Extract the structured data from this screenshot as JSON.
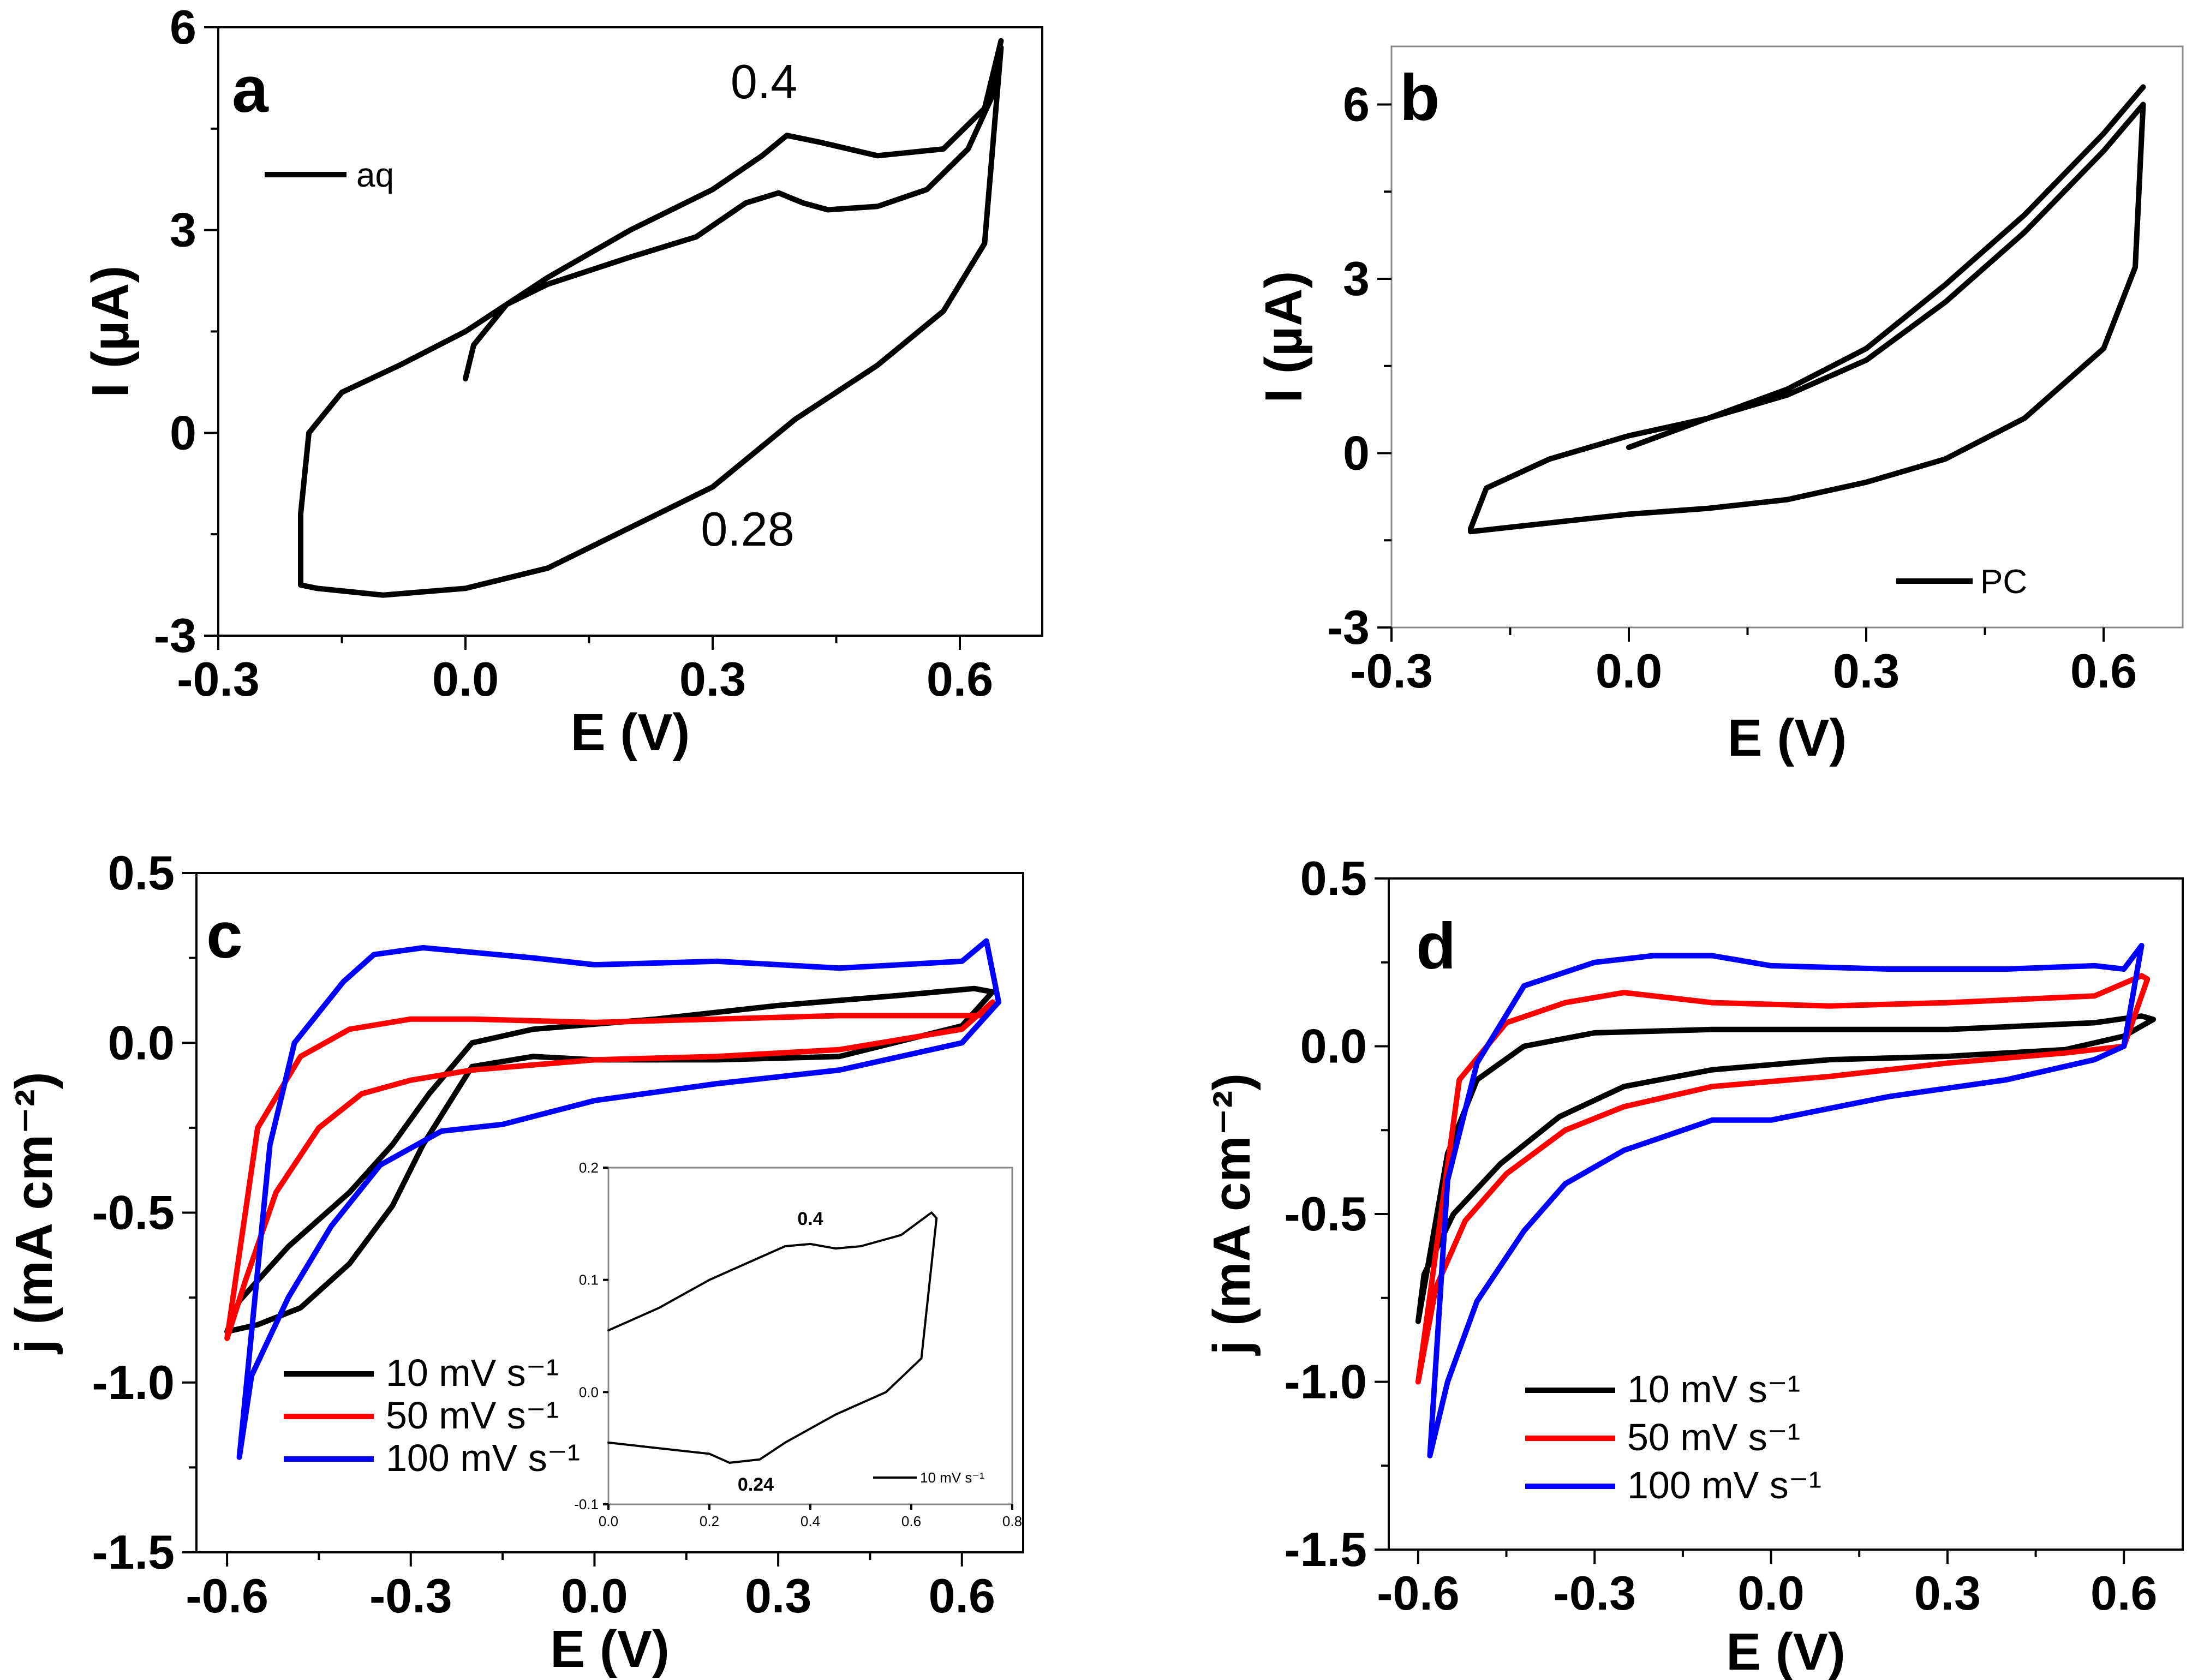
{
  "colors": {
    "black": "#000000",
    "red": "#ff0000",
    "blue": "#0000ff"
  },
  "chart_data": [
    {
      "id": "a",
      "type": "line",
      "panel_label": "a",
      "xlabel": "E (V)",
      "ylabel": "I (µA)",
      "xlim": [
        -0.3,
        0.7
      ],
      "ylim": [
        -3,
        6
      ],
      "xticks": [
        -0.3,
        0.0,
        0.3,
        0.6
      ],
      "xtick_labels": [
        "-0.3",
        "0.0",
        "0.3",
        "0.6"
      ],
      "yticks": [
        -3,
        0,
        3,
        6
      ],
      "ytick_labels": [
        "-3",
        "0",
        "3",
        "6"
      ],
      "legend": {
        "position": "top-left",
        "entries": [
          "aq"
        ]
      },
      "annotations": [
        {
          "text": "0.4",
          "x": 0.38,
          "y": 5.1
        },
        {
          "text": "0.28",
          "x": 0.35,
          "y": -1.5
        }
      ],
      "series": [
        {
          "name": "aq",
          "color": "#000000",
          "width": 10,
          "x": [
            0.0,
            0.01,
            0.05,
            0.1,
            0.2,
            0.28,
            0.34,
            0.38,
            0.41,
            0.44,
            0.5,
            0.56,
            0.61,
            0.64,
            0.65,
            0.63,
            0.58,
            0.5,
            0.4,
            0.3,
            0.2,
            0.1,
            0.0,
            -0.1,
            -0.18,
            -0.2,
            -0.2,
            -0.19,
            -0.15,
            -0.08,
            0.0,
            0.1,
            0.2,
            0.3,
            0.36,
            0.39,
            0.43,
            0.5,
            0.58,
            0.63,
            0.65
          ],
          "y": [
            0.8,
            1.3,
            1.9,
            2.2,
            2.6,
            2.9,
            3.4,
            3.55,
            3.4,
            3.3,
            3.35,
            3.6,
            4.2,
            5.0,
            5.7,
            2.8,
            1.8,
            1.0,
            0.2,
            -0.8,
            -1.4,
            -2.0,
            -2.3,
            -2.4,
            -2.3,
            -2.25,
            -1.2,
            0.0,
            0.6,
            1.0,
            1.5,
            2.3,
            3.0,
            3.6,
            4.1,
            4.4,
            4.3,
            4.1,
            4.2,
            4.8,
            5.8
          ]
        }
      ]
    },
    {
      "id": "b",
      "type": "line",
      "panel_label": "b",
      "xlabel": "E (V)",
      "ylabel": "I (µA)",
      "xlim": [
        -0.3,
        0.7
      ],
      "ylim": [
        -3,
        7
      ],
      "xticks": [
        -0.3,
        0.0,
        0.3,
        0.6
      ],
      "xtick_labels": [
        "-0.3",
        "0.0",
        "0.3",
        "0.6"
      ],
      "yticks": [
        -3,
        0,
        3,
        6
      ],
      "ytick_labels": [
        "-3",
        "0",
        "3",
        "6"
      ],
      "legend": {
        "position": "bottom-right",
        "entries": [
          "PC"
        ]
      },
      "annotations": [],
      "series": [
        {
          "name": "PC",
          "color": "#000000",
          "width": 10,
          "x": [
            0.0,
            0.1,
            0.2,
            0.3,
            0.4,
            0.5,
            0.6,
            0.65,
            0.64,
            0.6,
            0.5,
            0.4,
            0.3,
            0.2,
            0.1,
            0.0,
            -0.1,
            -0.2,
            -0.2,
            -0.18,
            -0.1,
            0.0,
            0.1,
            0.2,
            0.3,
            0.4,
            0.5,
            0.6,
            0.65
          ],
          "y": [
            0.1,
            0.6,
            1.0,
            1.6,
            2.6,
            3.8,
            5.2,
            6.0,
            3.2,
            1.8,
            0.6,
            -0.1,
            -0.5,
            -0.8,
            -0.95,
            -1.05,
            -1.2,
            -1.35,
            -1.3,
            -0.6,
            -0.1,
            0.3,
            0.6,
            1.1,
            1.8,
            2.9,
            4.1,
            5.5,
            6.3
          ]
        }
      ]
    },
    {
      "id": "c",
      "type": "line",
      "panel_label": "c",
      "xlabel": "E (V)",
      "ylabel": "j (mA cm⁻²)",
      "xlim": [
        -0.65,
        0.7
      ],
      "ylim": [
        -1.5,
        0.5
      ],
      "xticks": [
        -0.6,
        -0.3,
        0.0,
        0.3,
        0.6
      ],
      "xtick_labels": [
        "-0.6",
        "-0.3",
        "0.0",
        "0.3",
        "0.6"
      ],
      "yticks": [
        -1.5,
        -1.0,
        -0.5,
        0.0,
        0.5
      ],
      "ytick_labels": [
        "-1.5",
        "-1.0",
        "-0.5",
        "0.0",
        "0.5"
      ],
      "legend": {
        "position": "bottom-left",
        "entries": [
          "10 mV s⁻¹",
          "50 mV s⁻¹",
          "100 mV s⁻¹"
        ]
      },
      "annotations": [],
      "series": [
        {
          "name": "10 mV s⁻¹",
          "color": "#000000",
          "width": 10,
          "x": [
            -0.6,
            -0.55,
            -0.48,
            -0.4,
            -0.33,
            -0.28,
            -0.2,
            -0.1,
            0.0,
            0.2,
            0.4,
            0.6,
            0.65,
            0.62,
            0.5,
            0.3,
            0.1,
            -0.1,
            -0.2,
            -0.27,
            -0.33,
            -0.4,
            -0.5,
            -0.58,
            -0.6
          ],
          "y": [
            -0.85,
            -0.83,
            -0.78,
            -0.65,
            -0.48,
            -0.3,
            -0.07,
            -0.04,
            -0.05,
            -0.05,
            -0.04,
            0.05,
            0.15,
            0.16,
            0.14,
            0.11,
            0.07,
            0.04,
            0.0,
            -0.15,
            -0.3,
            -0.44,
            -0.6,
            -0.76,
            -0.85
          ]
        },
        {
          "name": "50 mV s⁻¹",
          "color": "#ff0000",
          "width": 10,
          "x": [
            -0.6,
            -0.57,
            -0.52,
            -0.45,
            -0.38,
            -0.3,
            -0.2,
            0.0,
            0.2,
            0.4,
            0.6,
            0.65,
            0.64,
            0.6,
            0.4,
            0.2,
            0.0,
            -0.2,
            -0.3,
            -0.4,
            -0.48,
            -0.55,
            -0.6
          ],
          "y": [
            -0.87,
            -0.7,
            -0.44,
            -0.25,
            -0.15,
            -0.11,
            -0.08,
            -0.05,
            -0.04,
            -0.02,
            0.04,
            0.12,
            0.08,
            0.08,
            0.08,
            0.07,
            0.06,
            0.07,
            0.07,
            0.04,
            -0.04,
            -0.25,
            -0.87
          ]
        },
        {
          "name": "100 mV s⁻¹",
          "color": "#0000ff",
          "width": 10,
          "x": [
            -0.58,
            -0.56,
            -0.5,
            -0.43,
            -0.35,
            -0.25,
            -0.15,
            0.0,
            0.2,
            0.4,
            0.6,
            0.66,
            0.64,
            0.6,
            0.4,
            0.2,
            0.0,
            -0.1,
            -0.28,
            -0.36,
            -0.41,
            -0.49,
            -0.53,
            -0.58
          ],
          "y": [
            -1.22,
            -0.98,
            -0.75,
            -0.54,
            -0.36,
            -0.26,
            -0.24,
            -0.17,
            -0.12,
            -0.08,
            0.0,
            0.12,
            0.3,
            0.24,
            0.22,
            0.24,
            0.23,
            0.25,
            0.28,
            0.26,
            0.18,
            0.0,
            -0.3,
            -1.22
          ]
        }
      ]
    },
    {
      "id": "c-inset",
      "type": "line",
      "xlim": [
        0.0,
        0.8
      ],
      "ylim": [
        -0.1,
        0.2
      ],
      "xticks": [
        0.0,
        0.2,
        0.4,
        0.6,
        0.8
      ],
      "xtick_labels": [
        "0.0",
        "0.2",
        "0.4",
        "0.6",
        "0.8"
      ],
      "yticks": [
        -0.1,
        0.0,
        0.1,
        0.2
      ],
      "ytick_labels": [
        "-0.1",
        "0.0",
        "0.1",
        "0.2"
      ],
      "legend": {
        "position": "bottom-right",
        "entries": [
          "10 mV s⁻¹"
        ]
      },
      "annotations": [
        {
          "text": "0.4",
          "x": 0.4,
          "y": 0.145
        },
        {
          "text": "0.24",
          "x": 0.29,
          "y": -0.085
        }
      ],
      "series": [
        {
          "name": "10 mV s⁻¹",
          "color": "#000000",
          "width": 4,
          "x": [
            0.0,
            0.1,
            0.2,
            0.3,
            0.35,
            0.4,
            0.45,
            0.5,
            0.58,
            0.64,
            0.65,
            0.62,
            0.55,
            0.45,
            0.35,
            0.3,
            0.24,
            0.2,
            0.1,
            0.0
          ],
          "y": [
            0.055,
            0.075,
            0.1,
            0.12,
            0.13,
            0.132,
            0.128,
            0.13,
            0.14,
            0.16,
            0.155,
            0.03,
            0.0,
            -0.02,
            -0.045,
            -0.06,
            -0.063,
            -0.055,
            -0.05,
            -0.045
          ]
        }
      ]
    },
    {
      "id": "d",
      "type": "line",
      "panel_label": "d",
      "xlabel": "E (V)",
      "ylabel": "j (mA cm⁻²)",
      "xlim": [
        -0.65,
        0.7
      ],
      "ylim": [
        -1.5,
        0.5
      ],
      "xticks": [
        -0.6,
        -0.3,
        0.0,
        0.3,
        0.6
      ],
      "xtick_labels": [
        "-0.6",
        "-0.3",
        "0.0",
        "0.3",
        "0.6"
      ],
      "yticks": [
        -1.5,
        -1.0,
        -0.5,
        0.0,
        0.5
      ],
      "ytick_labels": [
        "-1.5",
        "-1.0",
        "-0.5",
        "0.0",
        "0.5"
      ],
      "legend": {
        "position": "bottom-left",
        "entries": [
          "10 mV s⁻¹",
          "50 mV s⁻¹",
          "100 mV s⁻¹"
        ]
      },
      "annotations": [],
      "series": [
        {
          "name": "10 mV s⁻¹",
          "color": "#000000",
          "width": 10,
          "x": [
            -0.6,
            -0.59,
            -0.54,
            -0.46,
            -0.36,
            -0.25,
            -0.1,
            0.1,
            0.3,
            0.5,
            0.6,
            0.65,
            0.63,
            0.55,
            0.3,
            0.1,
            -0.1,
            -0.3,
            -0.42,
            -0.5,
            -0.55,
            -0.6
          ],
          "y": [
            -0.82,
            -0.68,
            -0.5,
            -0.35,
            -0.21,
            -0.12,
            -0.07,
            -0.04,
            -0.03,
            -0.01,
            0.03,
            0.08,
            0.09,
            0.07,
            0.05,
            0.05,
            0.05,
            0.04,
            0.0,
            -0.1,
            -0.32,
            -0.82
          ]
        },
        {
          "name": "50 mV s⁻¹",
          "color": "#ff0000",
          "width": 10,
          "x": [
            -0.6,
            -0.57,
            -0.52,
            -0.45,
            -0.35,
            -0.25,
            -0.1,
            0.1,
            0.3,
            0.5,
            0.6,
            0.64,
            0.63,
            0.55,
            0.3,
            0.1,
            -0.1,
            -0.25,
            -0.35,
            -0.45,
            -0.53,
            -0.6
          ],
          "y": [
            -1.0,
            -0.72,
            -0.52,
            -0.38,
            -0.25,
            -0.18,
            -0.12,
            -0.09,
            -0.05,
            -0.02,
            0.0,
            0.2,
            0.21,
            0.15,
            0.13,
            0.12,
            0.13,
            0.16,
            0.13,
            0.07,
            -0.1,
            -1.0
          ]
        },
        {
          "name": "100 mV s⁻¹",
          "color": "#0000ff",
          "width": 10,
          "x": [
            -0.58,
            -0.55,
            -0.5,
            -0.42,
            -0.35,
            -0.25,
            -0.1,
            0.0,
            0.2,
            0.4,
            0.55,
            0.6,
            0.63,
            0.6,
            0.55,
            0.4,
            0.2,
            0.0,
            -0.1,
            -0.2,
            -0.3,
            -0.42,
            -0.5,
            -0.55,
            -0.58
          ],
          "y": [
            -1.22,
            -1.0,
            -0.76,
            -0.55,
            -0.41,
            -0.31,
            -0.22,
            -0.22,
            -0.15,
            -0.1,
            -0.04,
            0.0,
            0.3,
            0.23,
            0.24,
            0.23,
            0.23,
            0.24,
            0.27,
            0.27,
            0.25,
            0.18,
            -0.05,
            -0.4,
            -1.22
          ]
        }
      ]
    }
  ]
}
